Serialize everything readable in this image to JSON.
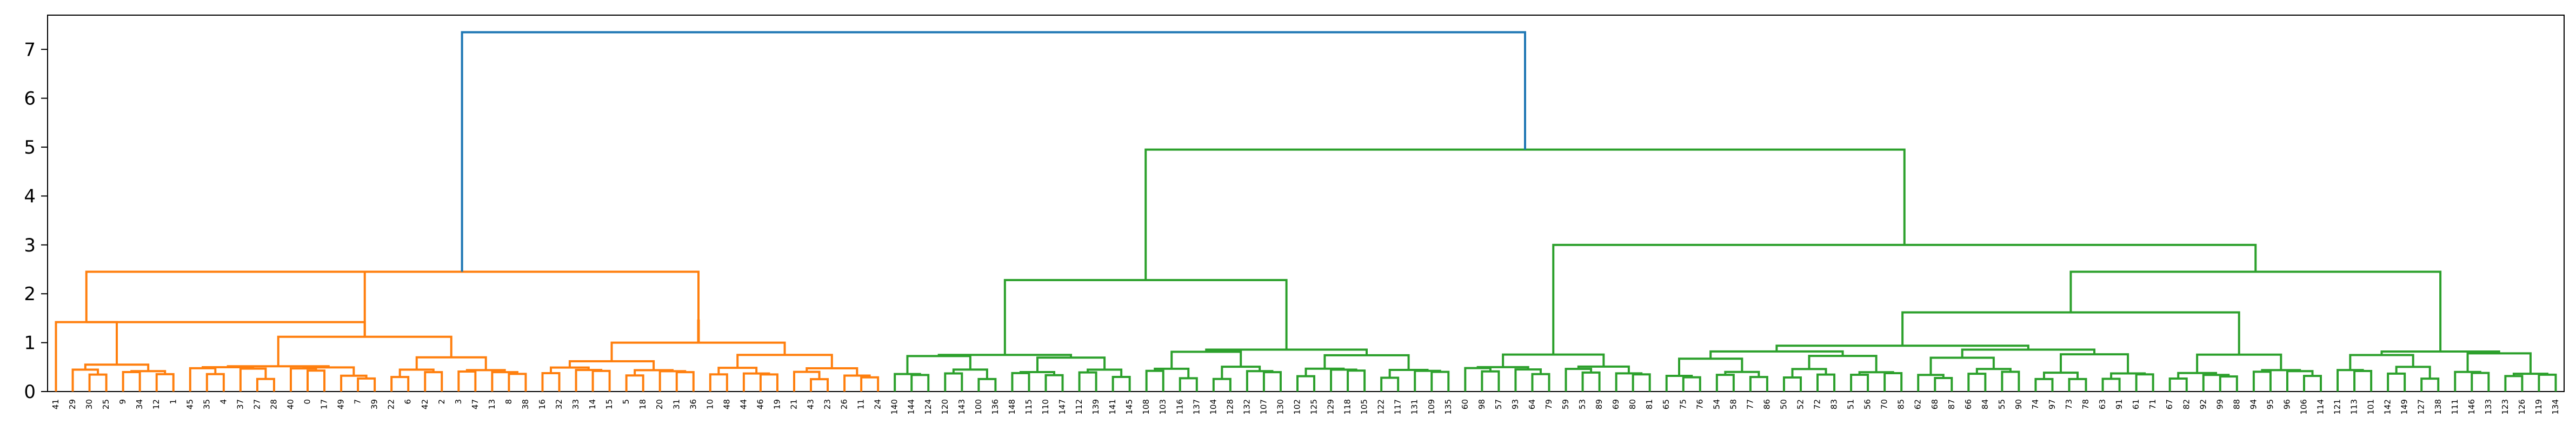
{
  "chart_data": {
    "type": "dendrogram",
    "title": "",
    "xlabel": "",
    "ylabel": "",
    "ylim": [
      0,
      7.7
    ],
    "yticks": [
      "0",
      "1",
      "2",
      "3",
      "4",
      "5",
      "6",
      "7"
    ],
    "grid": false,
    "colors": {
      "cluster_1": "#ff7f0e",
      "cluster_2": "#2ca02c",
      "above_threshold": "#1f77b4"
    },
    "leaves": [
      "41",
      "29",
      "30",
      "25",
      "9",
      "34",
      "12",
      "1",
      "45",
      "35",
      "4",
      "37",
      "27",
      "28",
      "40",
      "0",
      "17",
      "49",
      "7",
      "39",
      "22",
      "6",
      "42",
      "2",
      "3",
      "47",
      "13",
      "8",
      "38",
      "16",
      "32",
      "33",
      "14",
      "15",
      "5",
      "18",
      "20",
      "31",
      "36",
      "10",
      "48",
      "44",
      "46",
      "19",
      "21",
      "43",
      "23",
      "26",
      "11",
      "24",
      "140",
      "144",
      "124",
      "120",
      "143",
      "100",
      "136",
      "148",
      "115",
      "110",
      "147",
      "112",
      "139",
      "141",
      "145",
      "108",
      "103",
      "116",
      "137",
      "104",
      "128",
      "132",
      "107",
      "130",
      "102",
      "125",
      "129",
      "118",
      "105",
      "122",
      "117",
      "131",
      "109",
      "135",
      "60",
      "98",
      "57",
      "93",
      "64",
      "79",
      "59",
      "53",
      "89",
      "69",
      "80",
      "81",
      "65",
      "75",
      "76",
      "54",
      "58",
      "77",
      "86",
      "50",
      "52",
      "72",
      "83",
      "51",
      "56",
      "70",
      "85",
      "62",
      "68",
      "87",
      "66",
      "84",
      "55",
      "90",
      "74",
      "97",
      "73",
      "78",
      "63",
      "91",
      "61",
      "71",
      "67",
      "82",
      "92",
      "99",
      "88",
      "94",
      "95",
      "96",
      "106",
      "114",
      "121",
      "113",
      "101",
      "142",
      "149",
      "127",
      "138",
      "111",
      "146",
      "133",
      "123",
      "126",
      "119",
      "134"
    ],
    "merges": [
      {
        "left": "41",
        "right": "29~30~25~9~34~12~1",
        "height": 1.42,
        "cluster": "cluster_1"
      },
      {
        "left": "29~30~25~9",
        "right": "34~12~1",
        "height": 0.68,
        "cluster": "cluster_1"
      },
      {
        "left": "45~35~4~37~27~28~40~0~17~49~7~39",
        "right": "22~6~42~2~3~47~13~8~38",
        "height": 1.12,
        "cluster": "cluster_1"
      },
      {
        "left": "16~32~33~14~15~5~18~20~31~36~10",
        "right": "48~44~46~19~21~43~23~26~11~24",
        "height": 1.45,
        "cluster": "cluster_1"
      },
      {
        "left": "cluster_1_left",
        "right": "cluster_1_right",
        "height": 2.45,
        "cluster": "cluster_1"
      },
      {
        "left": "140~...~145",
        "right": "108~...~135",
        "height": 2.28,
        "cluster": "cluster_2"
      },
      {
        "left": "60~...~81",
        "right": "65~...~134",
        "height": 3.0,
        "cluster": "cluster_2"
      },
      {
        "left": "green_left",
        "right": "green_right",
        "height": 4.95,
        "cluster": "cluster_2"
      },
      {
        "left": "cluster_1",
        "right": "cluster_2",
        "height": 7.35,
        "cluster": "above_threshold"
      }
    ]
  }
}
